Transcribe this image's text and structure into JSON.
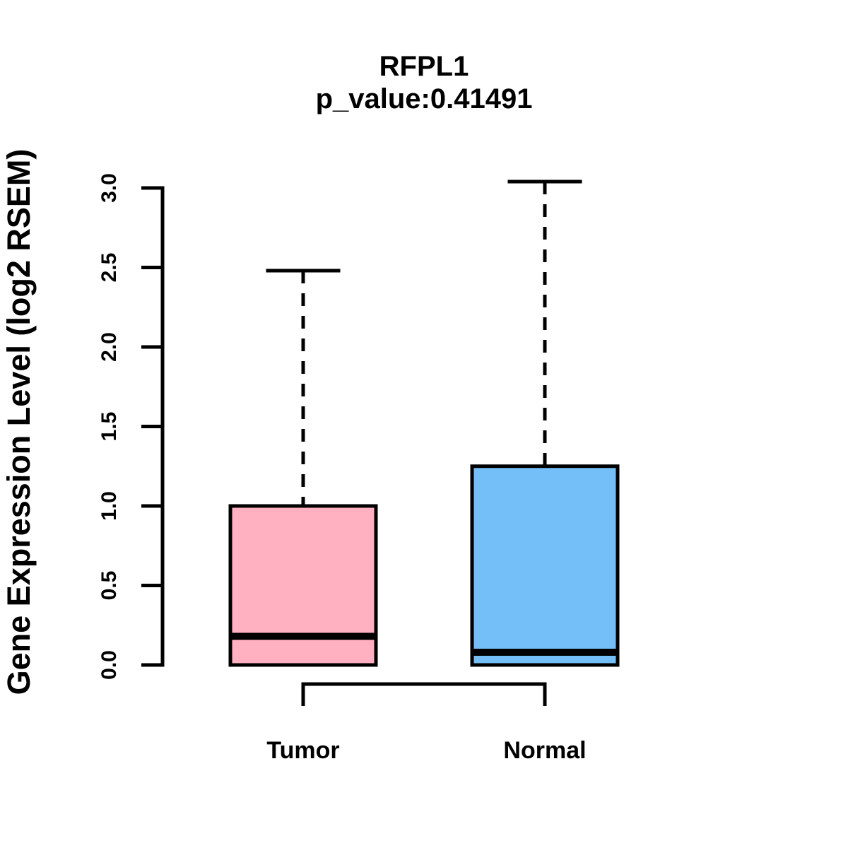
{
  "chart_data": {
    "type": "boxplot",
    "title": "RFPL1",
    "subtitle": "p_value:0.41491",
    "gene": "RFPL1",
    "p_value": "0.41491",
    "ylabel": "Gene Expression Level (log2 RSEM)",
    "ylim": [
      0.0,
      3.0
    ],
    "yticks": [
      "0.0",
      "0.5",
      "1.0",
      "1.5",
      "2.0",
      "2.5",
      "3.0"
    ],
    "grid": false,
    "legend": "none",
    "axis_color": "#000000",
    "groups": [
      {
        "label": "Tumor",
        "color": "#FFB1C1",
        "whisker_low": 0.0,
        "q1": 0.0,
        "median": 0.18,
        "q3": 1.0,
        "whisker_high": 2.48,
        "outliers": []
      },
      {
        "label": "Normal",
        "color": "#74BFF8",
        "whisker_low": 0.0,
        "q1": 0.0,
        "median": 0.08,
        "q3": 1.25,
        "whisker_high": 3.04,
        "outliers": []
      }
    ],
    "comparison_bracket": {
      "from": "Tumor",
      "to": "Normal"
    }
  }
}
